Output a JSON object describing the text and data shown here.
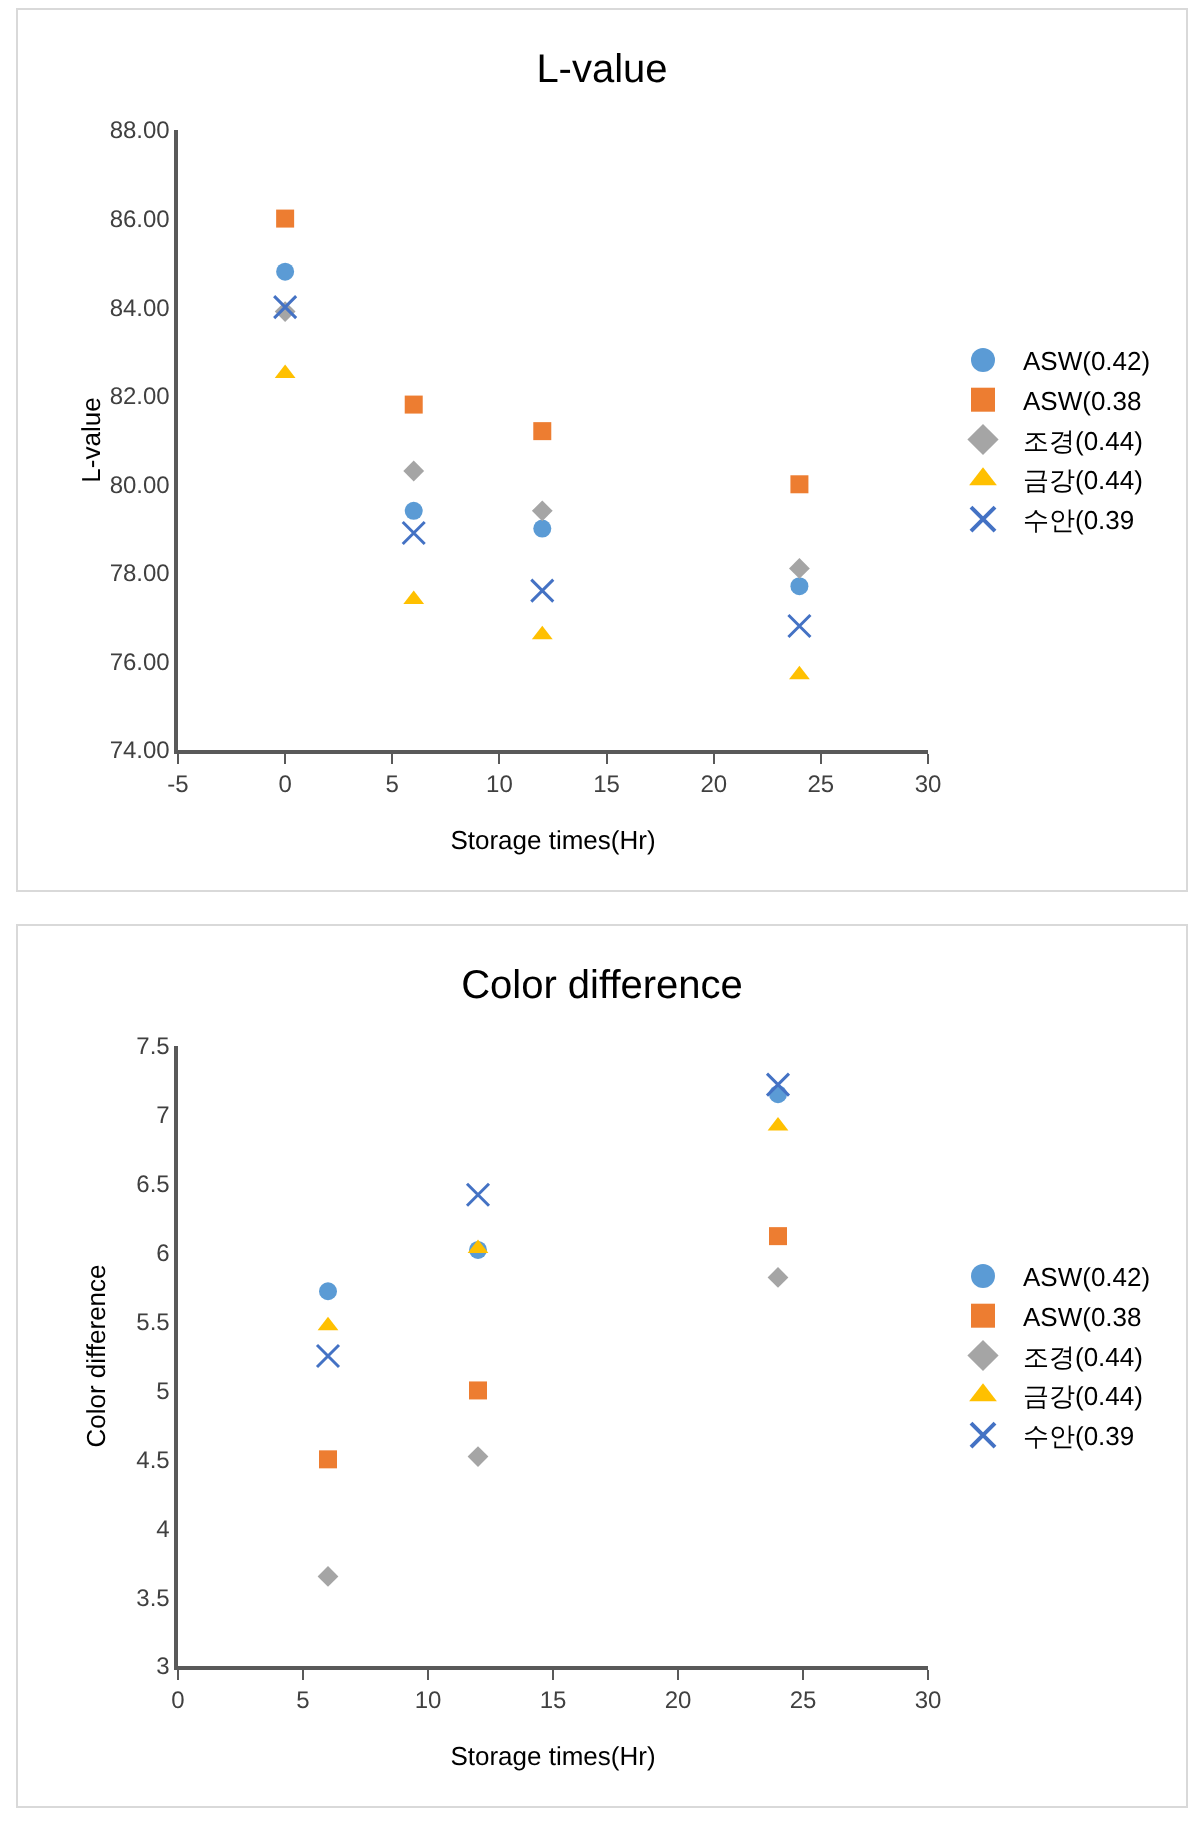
{
  "chart_data": [
    {
      "type": "scatter",
      "title": "L-value",
      "xlabel": "Storage times(Hr)",
      "ylabel": "L-value",
      "x": [
        0,
        6,
        12,
        24
      ],
      "xlim": [
        -5,
        30
      ],
      "xticks": [
        -5,
        0,
        5,
        10,
        15,
        20,
        25,
        30
      ],
      "ylim": [
        74,
        88
      ],
      "yticks": [
        {
          "value": 74,
          "label": "74.00"
        },
        {
          "value": 76,
          "label": "76.00"
        },
        {
          "value": 78,
          "label": "78.00"
        },
        {
          "value": 80,
          "label": "80.00"
        },
        {
          "value": 82,
          "label": "82.00"
        },
        {
          "value": 84,
          "label": "84.00"
        },
        {
          "value": 86,
          "label": "86.00"
        },
        {
          "value": 88,
          "label": "88.00"
        }
      ],
      "grid": false,
      "legend": "right",
      "series": [
        {
          "name": "ASW(0.42)",
          "color": "#5b9bd5",
          "marker": "circle",
          "values": [
            84.8,
            79.4,
            79.0,
            77.7
          ]
        },
        {
          "name": "ASW(0.38",
          "color": "#ed7d31",
          "marker": "square",
          "values": [
            86.0,
            81.8,
            81.2,
            80.0
          ]
        },
        {
          "name": "조경(0.44)",
          "color": "#a5a5a5",
          "marker": "diamond",
          "values": [
            83.9,
            80.3,
            79.4,
            78.1
          ]
        },
        {
          "name": "금강(0.44)",
          "color": "#ffc000",
          "marker": "triangle",
          "values": [
            82.5,
            77.4,
            76.6,
            75.7
          ]
        },
        {
          "name": "수안(0.39",
          "color": "#4472c4",
          "marker": "cross",
          "values": [
            84.0,
            78.9,
            77.6,
            76.8
          ]
        }
      ]
    },
    {
      "type": "scatter",
      "title": "Color difference",
      "xlabel": "Storage times(Hr)",
      "ylabel": "Color difference",
      "x": [
        6,
        12,
        24
      ],
      "xlim": [
        0,
        30
      ],
      "xticks": [
        0,
        5,
        10,
        15,
        20,
        25,
        30
      ],
      "ylim": [
        3,
        7.5
      ],
      "yticks": [
        3,
        3.5,
        4,
        4.5,
        5,
        5.5,
        6,
        6.5,
        7,
        7.5
      ],
      "grid": false,
      "legend": "right",
      "series": [
        {
          "name": "ASW(0.42)",
          "color": "#5b9bd5",
          "marker": "circle",
          "values": [
            5.72,
            6.02,
            7.15
          ]
        },
        {
          "name": "ASW(0.38",
          "color": "#ed7d31",
          "marker": "square",
          "values": [
            4.5,
            5.0,
            6.12
          ]
        },
        {
          "name": "조경(0.44)",
          "color": "#a5a5a5",
          "marker": "diamond",
          "values": [
            3.65,
            4.52,
            5.82
          ]
        },
        {
          "name": "금강(0.44)",
          "color": "#ffc000",
          "marker": "triangle",
          "values": [
            5.47,
            6.03,
            6.92
          ]
        },
        {
          "name": "수안(0.39",
          "color": "#4472c4",
          "marker": "cross",
          "values": [
            5.25,
            6.42,
            7.22
          ]
        }
      ]
    }
  ]
}
